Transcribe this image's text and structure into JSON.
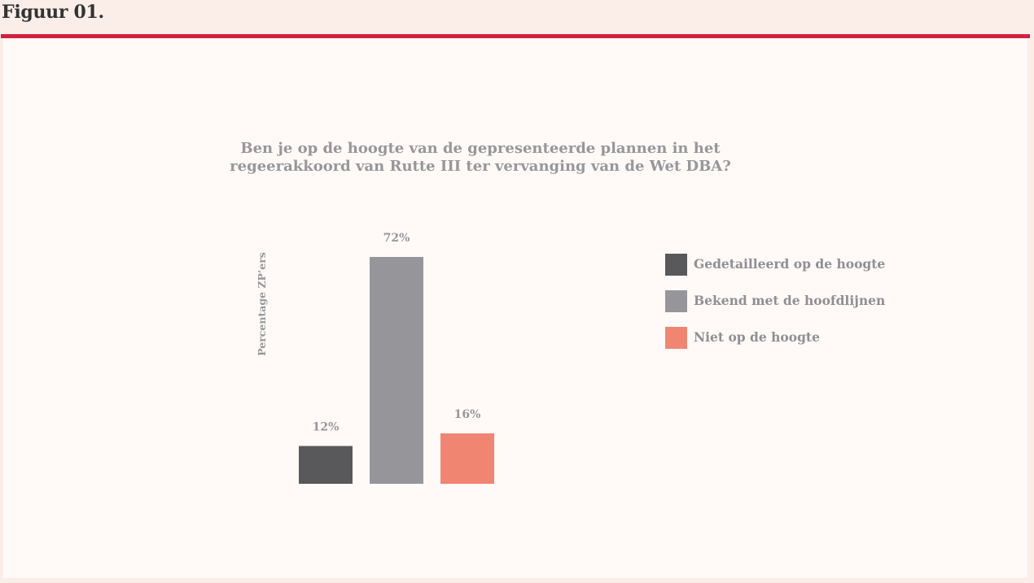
{
  "header": {
    "figure_label": "Figuur 01."
  },
  "colors": {
    "accent_rule": "#d41f3e",
    "page_background": "#fbeee9",
    "panel_background": "#fffaf7",
    "text_gray": "#97979b"
  },
  "chart_data": {
    "type": "bar",
    "title_lines": [
      "Ben je op de hoogte van de gepresenteerde plannen in het",
      "regeerakkoord van Rutte III ter vervanging van de Wet DBA?"
    ],
    "ylabel": "Percentage ZP’ers",
    "ylim": [
      0,
      72
    ],
    "grid": false,
    "legend_position": "right",
    "series": [
      {
        "name": "Gedetailleerd op de hoogte",
        "value": 12,
        "label": "12%",
        "color": "#59595c"
      },
      {
        "name": "Bekend met de hoofdlijnen",
        "value": 72,
        "label": "72%",
        "color": "#96969a"
      },
      {
        "name": "Niet op de hoogte",
        "value": 16,
        "label": "16%",
        "color": "#f08572"
      }
    ]
  }
}
